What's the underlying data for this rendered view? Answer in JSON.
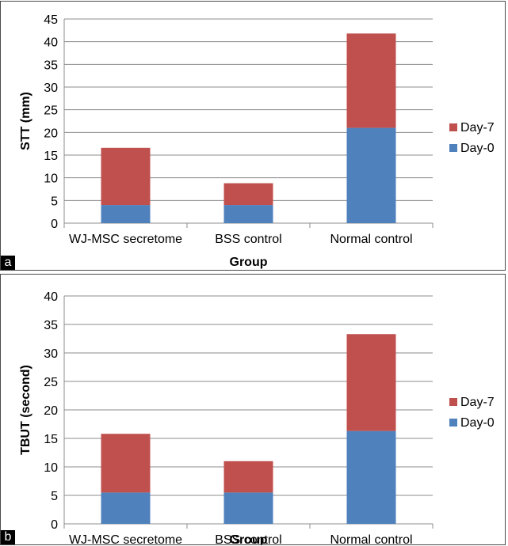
{
  "chart_data": [
    {
      "panel_label": "a",
      "type": "bar",
      "stacked": true,
      "categories": [
        "WJ-MSC secretome",
        "BSS control",
        "Normal control"
      ],
      "series": [
        {
          "name": "Day-0",
          "color": "#4f81bd",
          "values": [
            4,
            4,
            21
          ]
        },
        {
          "name": "Day-7",
          "color": "#c0504d",
          "values": [
            12.6,
            4.8,
            20.8
          ]
        }
      ],
      "xlabel": "Group",
      "ylabel": "STT (mm)",
      "ylim": [
        0,
        45
      ],
      "yticks": [
        0,
        5,
        10,
        15,
        20,
        25,
        30,
        35,
        40,
        45
      ],
      "grid": true,
      "legend": "right"
    },
    {
      "panel_label": "b",
      "type": "bar",
      "stacked": true,
      "categories": [
        "WJ-MSC secretome",
        "BSS control",
        "Normal control"
      ],
      "series": [
        {
          "name": "Day-0",
          "color": "#4f81bd",
          "values": [
            5.5,
            5.5,
            16.3
          ]
        },
        {
          "name": "Day-7",
          "color": "#c0504d",
          "values": [
            10.3,
            5.5,
            17
          ]
        }
      ],
      "xlabel": "Group",
      "ylabel": "TBUT (second)",
      "ylim": [
        0,
        40
      ],
      "yticks": [
        0,
        5,
        10,
        15,
        20,
        25,
        30,
        35,
        40
      ],
      "grid": true,
      "legend": "right"
    }
  ]
}
